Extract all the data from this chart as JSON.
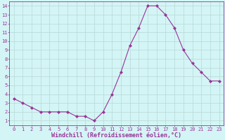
{
  "x": [
    0,
    1,
    2,
    3,
    4,
    5,
    6,
    7,
    8,
    9,
    10,
    11,
    12,
    13,
    14,
    15,
    16,
    17,
    18,
    19,
    20,
    21,
    22,
    23
  ],
  "y": [
    3.5,
    3.0,
    2.5,
    2.0,
    2.0,
    2.0,
    2.0,
    1.5,
    1.5,
    1.0,
    2.0,
    4.0,
    6.5,
    9.5,
    11.5,
    14.0,
    14.0,
    13.0,
    11.5,
    9.0,
    7.5,
    6.5,
    5.5,
    5.5
  ],
  "line_color": "#993399",
  "marker": "D",
  "marker_size": 2,
  "bg_color": "#d4f5f5",
  "grid_color": "#b8d8d8",
  "xlabel": "Windchill (Refroidissement éolien,°C)",
  "xlabel_color": "#993399",
  "tick_color": "#993399",
  "ylabel_ticks": [
    1,
    2,
    3,
    4,
    5,
    6,
    7,
    8,
    9,
    10,
    11,
    12,
    13,
    14
  ],
  "xlim": [
    -0.5,
    23.5
  ],
  "ylim": [
    0.5,
    14.5
  ]
}
